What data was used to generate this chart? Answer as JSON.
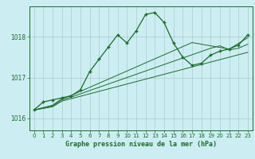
{
  "title": "Graphe pression niveau de la mer (hPa)",
  "background_color": "#cceef2",
  "grid_color": "#aacccc",
  "line_color": "#1a6b2a",
  "ylim": [
    1015.7,
    1018.75
  ],
  "xlim": [
    -0.5,
    23.5
  ],
  "yticks": [
    1016,
    1017,
    1018
  ],
  "xticks": [
    0,
    1,
    2,
    3,
    4,
    5,
    6,
    7,
    8,
    9,
    10,
    11,
    12,
    13,
    14,
    15,
    16,
    17,
    18,
    19,
    20,
    21,
    22,
    23
  ],
  "series": {
    "main": [
      1016.2,
      1016.4,
      1016.45,
      1016.5,
      1016.55,
      1016.7,
      1017.15,
      1017.45,
      1017.75,
      1018.05,
      1017.85,
      1018.15,
      1018.55,
      1018.6,
      1018.35,
      1017.85,
      1017.5,
      1017.3,
      1017.35,
      1017.55,
      1017.65,
      1017.7,
      1017.8,
      1018.05
    ],
    "line1": [
      1016.2,
      1016.24,
      1016.28,
      1016.42,
      1016.48,
      1016.54,
      1016.6,
      1016.66,
      1016.72,
      1016.78,
      1016.84,
      1016.9,
      1016.96,
      1017.02,
      1017.08,
      1017.14,
      1017.2,
      1017.26,
      1017.32,
      1017.38,
      1017.44,
      1017.5,
      1017.56,
      1017.62
    ],
    "line2": [
      1016.2,
      1016.25,
      1016.3,
      1016.45,
      1016.52,
      1016.6,
      1016.68,
      1016.76,
      1016.84,
      1016.92,
      1017.0,
      1017.08,
      1017.16,
      1017.24,
      1017.32,
      1017.4,
      1017.48,
      1017.56,
      1017.64,
      1017.72,
      1017.78,
      1017.68,
      1017.72,
      1017.82
    ],
    "line3": [
      1016.2,
      1016.26,
      1016.32,
      1016.48,
      1016.56,
      1016.66,
      1016.76,
      1016.86,
      1016.96,
      1017.06,
      1017.16,
      1017.26,
      1017.36,
      1017.46,
      1017.56,
      1017.66,
      1017.76,
      1017.86,
      1017.82,
      1017.78,
      1017.74,
      1017.7,
      1017.84,
      1017.98
    ]
  }
}
